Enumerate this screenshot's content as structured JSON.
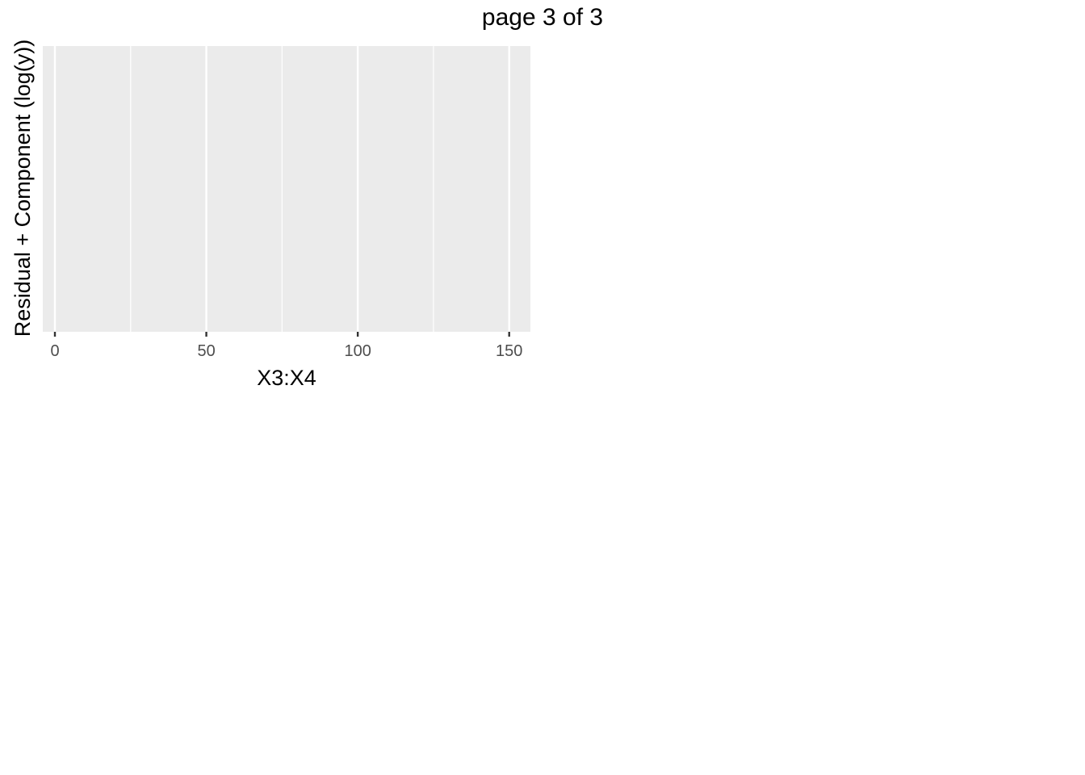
{
  "page": {
    "title": "page 3 of 3"
  },
  "chart_data": {
    "type": "scatter",
    "title": "",
    "xlabel": "X3:X4",
    "ylabel": "Residual + Component (log(y))",
    "xlim": [
      -4,
      157
    ],
    "x_ticks": [
      0,
      50,
      100,
      150
    ],
    "x_tick_labels": [
      "0",
      "50",
      "100",
      "150"
    ],
    "x_minor_ticks": [
      25,
      75,
      125
    ],
    "y_ticks": [],
    "grid": true,
    "series": [],
    "colors": {
      "panel_background": "#ebebeb",
      "grid_line": "#ffffff",
      "tick_label": "#4d4d4d",
      "axis_title": "#000000"
    }
  }
}
